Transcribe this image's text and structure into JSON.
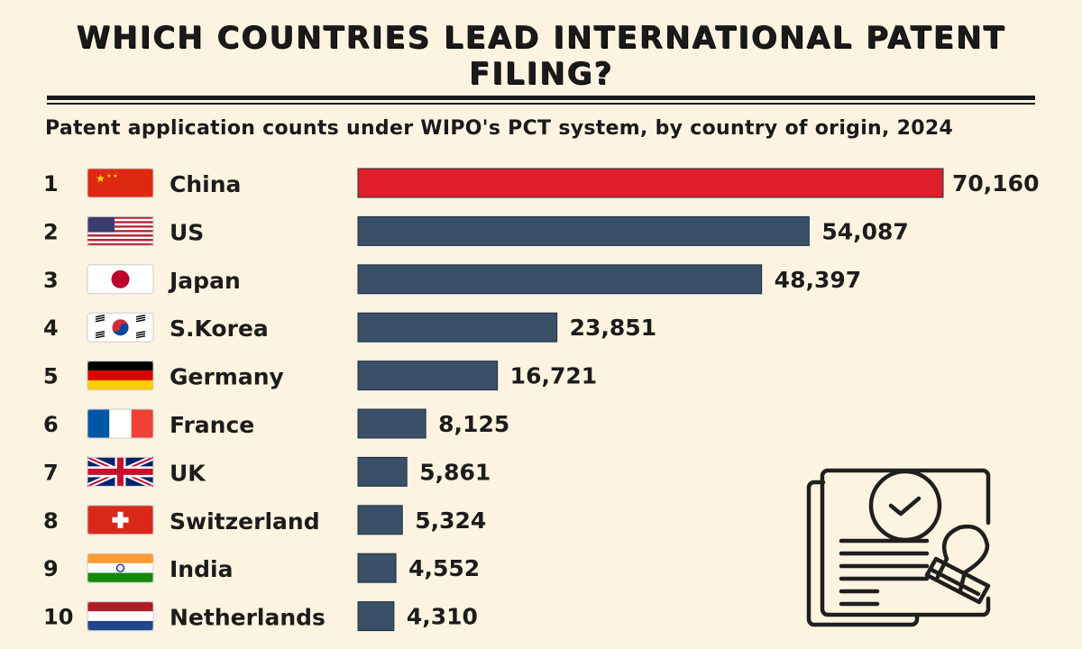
{
  "chart_data": {
    "type": "bar",
    "orientation": "horizontal",
    "title": "WHICH COUNTRIES LEAD INTERNATIONAL PATENT FILING?",
    "subtitle": "Patent application counts under WIPO's PCT system, by country of origin, 2024",
    "ranks": [
      "1",
      "2",
      "3",
      "4",
      "5",
      "6",
      "7",
      "8",
      "9",
      "10"
    ],
    "categories": [
      "China",
      "US",
      "Japan",
      "S.Korea",
      "Germany",
      "France",
      "UK",
      "Switzerland",
      "India",
      "Netherlands"
    ],
    "flags": [
      "cn",
      "us",
      "jp",
      "kr",
      "de",
      "fr",
      "gb",
      "ch",
      "in",
      "nl"
    ],
    "values": [
      70160,
      54087,
      48397,
      23851,
      16721,
      8125,
      5861,
      5324,
      4552,
      4310
    ],
    "value_labels": [
      "70,160",
      "54,087",
      "48,397",
      "23,851",
      "16,721",
      "8,125",
      "5,861",
      "5,324",
      "4,552",
      "4,310"
    ],
    "highlight_color": "#e01f2a",
    "bar_color": "#3a5068",
    "xlim": [
      0,
      70160
    ],
    "grid": false,
    "legend": "none"
  },
  "decoration": {
    "icon": "patent-document-stamp-icon"
  }
}
